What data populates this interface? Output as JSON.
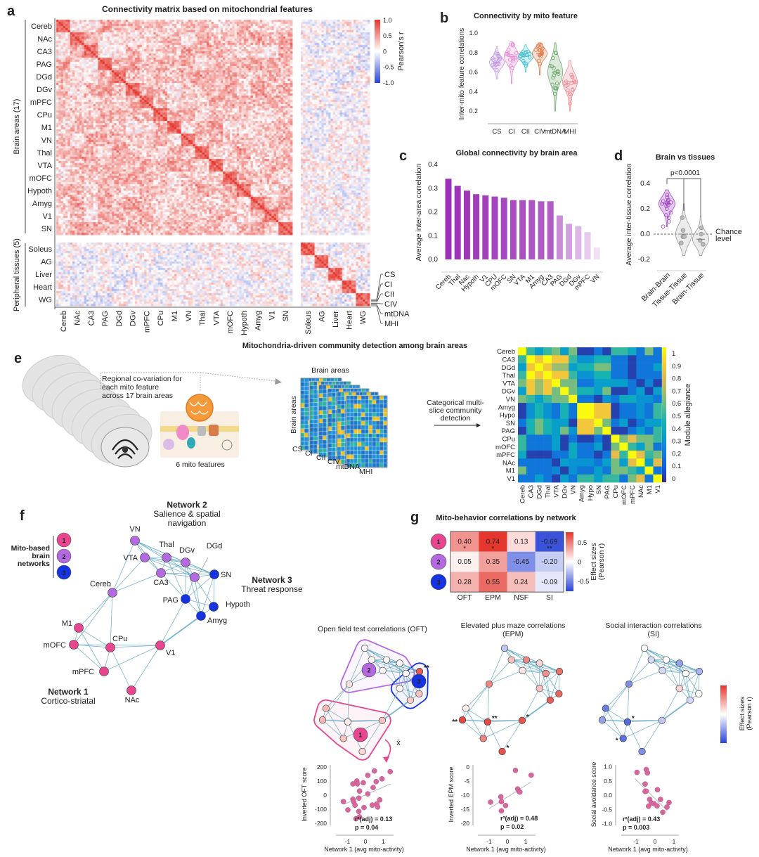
{
  "panel_labels": [
    "a",
    "b",
    "c",
    "d",
    "e",
    "f",
    "g"
  ],
  "chart_data": [
    {
      "type": "heatmap",
      "title": "Connectivity matrix based on mitochondrial features",
      "row_groups": [
        "Brain areas (17)",
        "Peripheral tissues (5)"
      ],
      "brain_areas": [
        "Cereb",
        "NAc",
        "CA3",
        "PAG",
        "DGd",
        "DGv",
        "mPFC",
        "CPu",
        "M1",
        "VN",
        "Thal",
        "VTA",
        "mOFC",
        "Hypoth",
        "Amyg",
        "V1",
        "SN"
      ],
      "tissues": [
        "Soleus",
        "AG",
        "Liver",
        "Heart",
        "WG"
      ],
      "features_per_area": [
        "CS",
        "CI",
        "CII",
        "CIV",
        "mtDNA",
        "MHI"
      ],
      "colorbar": {
        "label": "Pearson's r",
        "range": [
          -1,
          1
        ],
        "ticks": [
          "1.0",
          "0.5",
          "0",
          "-0.5",
          "-1.0"
        ]
      },
      "colormap": {
        "positive": "#e5352c",
        "zero": "#ffffff",
        "negative": "#2a44d8"
      }
    },
    {
      "type": "violin",
      "title": "Connectivity by mito feature",
      "ylabel": "Inter-mito feature correlations",
      "ylim": [
        0.2,
        1.0
      ],
      "yticks": [
        "1.0",
        "0.8",
        "0.6",
        "0.4",
        "0.2"
      ],
      "categories": [
        "CS",
        "CI",
        "CII",
        "CIV",
        "mtDNA",
        "MHI"
      ],
      "ranges": [
        [
          0.53,
          0.86
        ],
        [
          0.48,
          0.91
        ],
        [
          0.6,
          0.88
        ],
        [
          0.57,
          0.9
        ],
        [
          0.2,
          0.9
        ],
        [
          0.2,
          0.72
        ]
      ],
      "medians": [
        0.7,
        0.76,
        0.76,
        0.79,
        0.6,
        0.5
      ],
      "colors": [
        "#c49be6",
        "#e890d4",
        "#4fc3d0",
        "#e07f4f",
        "#6fa86f",
        "#ee8a93"
      ]
    },
    {
      "type": "bar",
      "title": "Global connectivity by brain area",
      "ylabel": "Average inter-area correlation",
      "ylim": [
        0,
        0.4
      ],
      "yticks": [
        "0.4",
        "0.3",
        "0.2",
        "0.1",
        "0.0"
      ],
      "categories": [
        "Cereb",
        "Thal",
        "Nac",
        "Hypoth",
        "V1",
        "CPU",
        "mOFC",
        "SN",
        "VTA",
        "M1",
        "Amyg",
        "CA3",
        "PAG",
        "DGd",
        "DGv",
        "mPFC",
        "VN"
      ],
      "values": [
        0.34,
        0.31,
        0.29,
        0.275,
        0.27,
        0.265,
        0.26,
        0.25,
        0.25,
        0.25,
        0.245,
        0.245,
        0.185,
        0.15,
        0.14,
        0.115,
        0.05
      ],
      "color": "#9b2fb5"
    },
    {
      "type": "violin",
      "title": "Brain vs tissues",
      "ylabel": "Average inter-tissue correlation",
      "ylim": [
        -0.2,
        0.4
      ],
      "yticks": [
        "0.4",
        "0.2",
        "0.0",
        "-0.2"
      ],
      "categories": [
        "Brain-Brain",
        "Tissue-Tissue",
        "Brain-Tissue"
      ],
      "ranges": [
        [
          0.06,
          0.35
        ],
        [
          -0.17,
          0.24
        ],
        [
          -0.17,
          0.14
        ]
      ],
      "medians": [
        0.24,
        0.0,
        -0.04
      ],
      "points": [
        [
          0.31,
          0.29,
          0.27,
          0.26,
          0.25,
          0.25,
          0.24,
          0.24,
          0.23,
          0.22,
          0.2,
          0.17,
          0.15,
          0.13,
          0.1,
          0.06,
          0.26
        ],
        [
          0.13,
          0.03,
          -0.02,
          -0.02,
          -0.07
        ],
        [
          0.05,
          0.0,
          -0.05,
          -0.08,
          -0.08
        ]
      ],
      "colors": [
        "#a24bc4",
        "#c8c8c8",
        "#c8c8c8"
      ],
      "annotation": "p<0.0001",
      "reference_line": {
        "y": 0,
        "label_lines": [
          "Chance",
          "level"
        ]
      }
    },
    {
      "type": "heatmap",
      "title": "Mitochondria-driven community detection among brain areas",
      "labels": [
        "Cereb",
        "CA3",
        "DGd",
        "Thal",
        "VTA",
        "DGv",
        "VN",
        "Amyg",
        "Hypo",
        "SN",
        "PAG",
        "CPu",
        "mOFC",
        "mPFC",
        "NAc",
        "M1",
        "V1"
      ],
      "colorbar": {
        "label": "Module allegiance",
        "range": [
          0,
          1
        ],
        "ticks": [
          "1",
          "0.9",
          "0.8",
          "0.7",
          "0.6",
          "0.5",
          "0.4",
          "0.3",
          "0.2",
          "0.1",
          "0"
        ]
      },
      "colormap": "parula",
      "values": [
        [
          1,
          0.5,
          0.35,
          0.5,
          0.6,
          0.35,
          0.6,
          0.05,
          0.05,
          0.2,
          0.05,
          0.5,
          0.5,
          0.4,
          0.2,
          0.6,
          0.2
        ],
        [
          0.5,
          1,
          0.85,
          1,
          0.85,
          0.85,
          0.5,
          0.3,
          0.3,
          0.45,
          0.45,
          0.2,
          0.2,
          0.05,
          0.2,
          0.2,
          0.2
        ],
        [
          0.35,
          0.85,
          1,
          0.85,
          0.65,
          0.65,
          0.35,
          0.45,
          0.45,
          0.6,
          0.6,
          0.2,
          0.2,
          0.05,
          0.2,
          0.2,
          0.35
        ],
        [
          0.5,
          1,
          0.85,
          1,
          0.85,
          0.85,
          0.5,
          0.3,
          0.3,
          0.45,
          0.45,
          0.2,
          0.2,
          0.05,
          0.2,
          0.2,
          0.2
        ],
        [
          0.6,
          0.85,
          0.65,
          0.85,
          1,
          0.6,
          0.6,
          0.2,
          0.2,
          0.35,
          0.35,
          0.35,
          0.35,
          0.2,
          0.05,
          0.25,
          0.05
        ],
        [
          0.35,
          0.85,
          0.65,
          0.85,
          0.6,
          1,
          0.6,
          0.45,
          0.45,
          0.35,
          0.6,
          0.05,
          0.05,
          0.2,
          0.35,
          0.05,
          0.35
        ],
        [
          0.6,
          0.5,
          0.35,
          0.5,
          0.6,
          0.6,
          1,
          0.2,
          0.2,
          0.05,
          0.3,
          0.2,
          0.4,
          0.4,
          0.3,
          0.3,
          0.2
        ],
        [
          0.05,
          0.3,
          0.45,
          0.3,
          0.2,
          0.45,
          0.2,
          1,
          1,
          0.85,
          0.85,
          0.05,
          0.2,
          0.2,
          0.3,
          0.2,
          0.5
        ],
        [
          0.05,
          0.3,
          0.45,
          0.3,
          0.2,
          0.45,
          0.2,
          1,
          1,
          0.85,
          0.85,
          0.05,
          0.2,
          0.2,
          0.3,
          0.2,
          0.5
        ],
        [
          0.2,
          0.45,
          0.6,
          0.45,
          0.35,
          0.35,
          0.05,
          0.85,
          0.85,
          1,
          0.6,
          0.2,
          0.35,
          0.05,
          0.2,
          0.35,
          0.35
        ],
        [
          0.05,
          0.45,
          0.6,
          0.45,
          0.35,
          0.6,
          0.3,
          0.85,
          0.85,
          0.6,
          1,
          0.05,
          0.05,
          0.2,
          0.35,
          0.2,
          0.5
        ],
        [
          0.5,
          0.2,
          0.2,
          0.2,
          0.35,
          0.05,
          0.2,
          0.05,
          0.05,
          0.2,
          0.05,
          1,
          0.6,
          0.8,
          0.6,
          0.6,
          0.5
        ],
        [
          0.5,
          0.2,
          0.2,
          0.2,
          0.35,
          0.05,
          0.4,
          0.2,
          0.2,
          0.35,
          0.05,
          0.6,
          1,
          0.5,
          0.35,
          0.6,
          0.2
        ],
        [
          0.4,
          0.05,
          0.05,
          0.05,
          0.2,
          0.2,
          0.4,
          0.2,
          0.2,
          0.05,
          0.2,
          0.8,
          0.5,
          1,
          0.8,
          0.5,
          0.6
        ],
        [
          0.2,
          0.2,
          0.2,
          0.2,
          0.05,
          0.35,
          0.3,
          0.3,
          0.3,
          0.2,
          0.35,
          0.6,
          0.35,
          0.8,
          1,
          0.35,
          0.8
        ],
        [
          0.6,
          0.2,
          0.2,
          0.2,
          0.25,
          0.05,
          0.3,
          0.2,
          0.2,
          0.35,
          0.2,
          0.6,
          0.6,
          0.5,
          0.35,
          1,
          0.2
        ],
        [
          0.2,
          0.2,
          0.35,
          0.2,
          0.05,
          0.35,
          0.2,
          0.5,
          0.5,
          0.35,
          0.5,
          0.5,
          0.2,
          0.6,
          0.8,
          0.2,
          1
        ]
      ]
    },
    {
      "type": "heatmap",
      "title": "Mito-behavior correlations by network",
      "rows": [
        "1",
        "2",
        "3"
      ],
      "columns": [
        "OFT",
        "EPM",
        "NSF",
        "SI"
      ],
      "values": [
        [
          0.4,
          0.74,
          0.13,
          -0.69
        ],
        [
          0.05,
          0.35,
          -0.45,
          -0.2
        ],
        [
          0.28,
          0.55,
          0.24,
          -0.09
        ]
      ],
      "value_labels": [
        [
          "0.40",
          "0.74",
          "0.13",
          "-0.69"
        ],
        [
          "0.05",
          "0.35",
          "-0.45",
          "-0.20"
        ],
        [
          "0.28",
          "0.55",
          "0.24",
          "-0.09"
        ]
      ],
      "stars": [
        [
          "*",
          "*",
          "",
          "**"
        ],
        [
          "",
          "",
          "",
          ""
        ],
        [
          "",
          "",
          "",
          ""
        ]
      ],
      "colorbar": {
        "label_lines": [
          "Effect sizes",
          "(Pearson r)"
        ],
        "range": [
          -0.75,
          0.75
        ],
        "ticks": [
          "0.5",
          "0",
          "-0.5"
        ]
      }
    },
    {
      "type": "scatter",
      "ylabel": "Inverted OFT score",
      "xlabel": "Network 1  (avg mito-activity)",
      "xticks": [
        "-1",
        "0",
        "1"
      ],
      "yticks": [
        "200",
        "100",
        "0",
        "-100",
        "-200"
      ],
      "xlim": [
        -1.5,
        1.5
      ],
      "ylim": [
        -200,
        200
      ],
      "points": [
        [
          -1.23,
          -46
        ],
        [
          -0.98,
          -105
        ],
        [
          -0.7,
          80
        ],
        [
          -0.48,
          100
        ],
        [
          -0.45,
          80
        ],
        [
          -0.12,
          88
        ],
        [
          0.13,
          141
        ],
        [
          0.5,
          172
        ],
        [
          0.6,
          96
        ],
        [
          0.92,
          116
        ],
        [
          1.38,
          167
        ],
        [
          -0.33,
          29
        ],
        [
          0.13,
          9
        ],
        [
          -0.7,
          -29
        ],
        [
          -0.65,
          -49
        ],
        [
          -0.37,
          -21
        ],
        [
          -0.58,
          -71
        ],
        [
          -0.08,
          -88
        ],
        [
          -0.37,
          -116
        ],
        [
          -0.33,
          -155
        ],
        [
          -0.53,
          -168
        ],
        [
          0.38,
          -71
        ],
        [
          0.63,
          -63
        ],
        [
          0.8,
          -34
        ],
        [
          0.68,
          -84
        ],
        [
          0.43,
          54
        ]
      ],
      "trend_line": [
        [
          -1.2,
          -65
        ],
        [
          1.4,
          80
        ]
      ],
      "stats": [
        "r²(adj) = 0.13",
        "p = 0.04"
      ]
    },
    {
      "type": "scatter",
      "ylabel": "Inverted EPM score",
      "xlabel": "Network 1  (avg mito-activity)",
      "xticks": [
        "-1",
        "0",
        "1"
      ],
      "yticks": [
        "0",
        "-5",
        "-10",
        "-15",
        "-20"
      ],
      "xlim": [
        -1.5,
        1.5
      ],
      "ylim": [
        -20,
        0
      ],
      "points": [
        [
          -0.92,
          -12.5
        ],
        [
          -0.36,
          -10.6
        ],
        [
          -0.33,
          -12.3
        ],
        [
          -0.33,
          -15.6
        ],
        [
          -0.1,
          -13.7
        ],
        [
          0.44,
          -1.2
        ],
        [
          0.56,
          -7.8
        ],
        [
          0.64,
          -8.7
        ],
        [
          0.68,
          -8.9
        ],
        [
          1.3,
          -2.9
        ]
      ],
      "trend_line": [
        [
          -1.0,
          -14.8
        ],
        [
          1.3,
          -5.3
        ]
      ],
      "stats": [
        "r²(adj) = 0.48",
        "p = 0.02"
      ]
    },
    {
      "type": "scatter",
      "ylabel": "Social avoidance score",
      "xlabel": "Network 1  (avg mito-activity)",
      "xticks": [
        "-1",
        "0",
        "1"
      ],
      "yticks": [
        "1.0",
        "0.5",
        "0.0",
        "-0.5",
        "-1.0"
      ],
      "xlim": [
        -1.5,
        1.5
      ],
      "ylim": [
        -1,
        1
      ],
      "points": [
        [
          -0.95,
          0.8
        ],
        [
          -0.46,
          0.9
        ],
        [
          -0.4,
          0.78
        ],
        [
          -0.52,
          0.39
        ],
        [
          -0.52,
          0.13
        ],
        [
          -0.46,
          0.14
        ],
        [
          0.13,
          0.19
        ],
        [
          -0.28,
          -0.15
        ],
        [
          -0.34,
          -0.39
        ],
        [
          -0.2,
          -0.27
        ],
        [
          -0.05,
          -0.3
        ],
        [
          0.11,
          -0.38
        ],
        [
          0.29,
          -0.15
        ],
        [
          0.41,
          -0.6
        ],
        [
          0.63,
          -0.42
        ],
        [
          0.74,
          -0.26
        ]
      ],
      "trend_line": [
        [
          -1.05,
          0.57
        ],
        [
          0.65,
          -0.55
        ]
      ],
      "stats": [
        "r²(adj) = 0.43",
        "p = 0.003"
      ]
    }
  ],
  "panel_e": {
    "annotation_lines": [
      "Regional co-variation for",
      "each mito feature",
      "across 17 brain areas"
    ],
    "mito_caption": "6 mito features",
    "slices_axis_top": "Brain areas",
    "slices_axis_left": "Brain areas",
    "slice_labels": [
      "CS",
      "CI",
      "CII",
      "CIV",
      "mtDNA",
      "MHI"
    ],
    "method_lines": [
      "Categorical multi-",
      "slice community",
      "detection"
    ]
  },
  "panel_f": {
    "legend_lines": [
      "Mito-based",
      "brain",
      "networks"
    ],
    "networks": [
      {
        "number": "1",
        "name": "Network 1",
        "subtitle_lines": [
          "Cortico-striatal"
        ],
        "color": "#e8468e",
        "members": [
          "M1",
          "mOFC",
          "CPu",
          "V1",
          "mPFC",
          "NAc"
        ]
      },
      {
        "number": "2",
        "name": "Network 2",
        "subtitle_lines": [
          "Salience & spatial",
          "navigation"
        ],
        "color": "#b469e0",
        "members": [
          "VN",
          "VTA",
          "Thal",
          "DGv",
          "CA3",
          "DGd",
          "Cereb"
        ]
      },
      {
        "number": "3",
        "name": "Network 3",
        "subtitle_lines": [
          "Threat response"
        ],
        "color": "#1533e0",
        "members": [
          "SN",
          "PAG",
          "Hypoth",
          "Amyg"
        ]
      }
    ],
    "edge_color": "#5fa8c4"
  },
  "panel_g_networks": {
    "colorbar_label_lines": [
      "Effect sizes",
      "(Pearson r)"
    ],
    "mean_symbol": "x̄",
    "tests": [
      {
        "title_lines": [
          "Open field test correlations (OFT)"
        ],
        "effects": {
          "VN": 0.03,
          "VTA": 0.05,
          "Thal": 0.05,
          "DGv": 0.05,
          "CA3": 0.05,
          "DGd": 0.03,
          "Cereb": 0.15,
          "SN": 0.8,
          "PAG": 0.05,
          "Hypoth": 0.3,
          "Amyg": 0.25,
          "M1": 0.35,
          "mOFC": 0.35,
          "CPu": 0.1,
          "V1": 0.3,
          "mPFC": 0.3,
          "NAc": 0.2
        },
        "stars": {
          "SN": "**"
        }
      },
      {
        "title_lines": [
          "Elevated plus maze correlations",
          "(EPM)"
        ],
        "effects": {
          "VN": -0.3,
          "VTA": 0.3,
          "Thal": 0.6,
          "DGv": 0.2,
          "CA3": 0.12,
          "DGd": 0.55,
          "Cereb": 0.6,
          "SN": 0.7,
          "PAG": 0.3,
          "Hypoth": 0.75,
          "Amyg": 0.8,
          "M1": 0.1,
          "mOFC": 0.9,
          "CPu": 0.9,
          "V1": 0.85,
          "mPFC": 0.6,
          "NAc": 0.85
        },
        "stars": {
          "mOFC": "**",
          "CPu": "**",
          "V1": "*",
          "NAc": "*"
        }
      },
      {
        "title_lines": [
          "Social interaction correlations",
          "(SI)"
        ],
        "effects": {
          "VN": 0.0,
          "VTA": -0.2,
          "Thal": 0.0,
          "DGv": -0.5,
          "CA3": -0.2,
          "DGd": 0.0,
          "Cereb": -0.6,
          "SN": -0.4,
          "PAG": 0.2,
          "Hypoth": 0.0,
          "Amyg": -0.2,
          "M1": -0.7,
          "mOFC": -0.5,
          "CPu": -0.8,
          "V1": -0.3,
          "mPFC": -0.75,
          "NAc": -0.6
        },
        "stars": {
          "CPu": "*",
          "mPFC": "*"
        }
      }
    ]
  }
}
